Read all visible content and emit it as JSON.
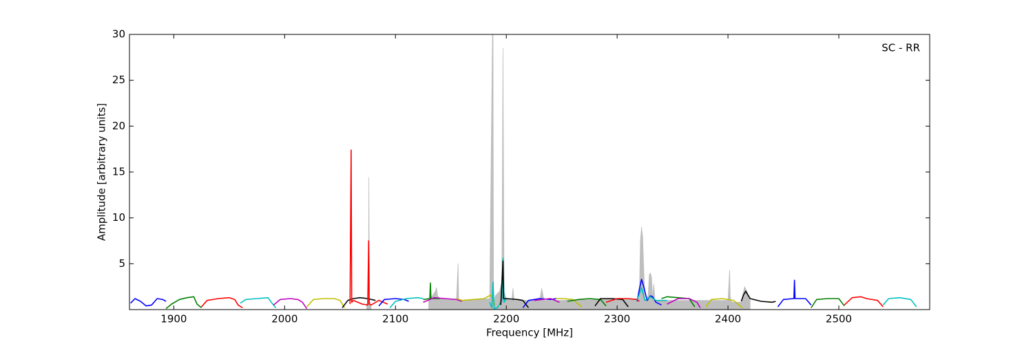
{
  "chart_data": {
    "type": "line",
    "xlabel": "Frequency [MHz]",
    "ylabel": "Amplitude [arbitrary units]",
    "annotation": "SC - RR",
    "xlim": [
      1860,
      2582
    ],
    "ylim": [
      0,
      30
    ],
    "xticks": [
      1900,
      2000,
      2100,
      2200,
      2300,
      2400,
      2500
    ],
    "yticks": [
      5,
      10,
      15,
      20,
      25,
      30
    ],
    "series": [
      {
        "color": "#bebebe",
        "fill": true,
        "x": [
          2074,
          2075.5,
          2076,
          2076.5,
          2078
        ],
        "values": [
          0.5,
          1.0,
          14.4,
          1.0,
          0.5
        ]
      },
      {
        "color": "#bebebe",
        "fill": true,
        "x": [
          2130,
          2136,
          2137,
          2138,
          2140,
          2155,
          2156.5,
          2157,
          2157.5,
          2160,
          2185,
          2187.5,
          2188,
          2188.5,
          2190,
          2194,
          2196,
          2197,
          2198,
          2200,
          2205,
          2206,
          2207,
          2230,
          2232,
          2234,
          2245,
          2320,
          2321,
          2322,
          2323,
          2325,
          2328,
          2329,
          2330,
          2331,
          2332,
          2333,
          2334,
          2335,
          2340,
          2400,
          2401.5,
          2402,
          2402.5,
          2404,
          2412,
          2415,
          2417,
          2420
        ],
        "values": [
          0.9,
          2.0,
          2.4,
          1.5,
          1.2,
          1.0,
          5.0,
          1.2,
          1.0,
          1.0,
          1.2,
          30,
          30,
          0.5,
          1.5,
          2.0,
          3.0,
          28.5,
          2.0,
          1.2,
          1.0,
          2.3,
          1.0,
          1.0,
          2.3,
          1.0,
          1.0,
          1.2,
          7.5,
          9.0,
          8.0,
          1.0,
          1.5,
          3.8,
          4.0,
          3.5,
          1.2,
          2.8,
          1.2,
          1.0,
          1.0,
          1.0,
          4.3,
          1.5,
          1.0,
          0.8,
          0.8,
          2.5,
          2.0,
          1.0
        ]
      },
      {
        "color": "#0000ff",
        "x": [
          1861,
          1865,
          1870,
          1875,
          1880,
          1885,
          1890,
          1893
        ],
        "values": [
          0.7,
          1.2,
          0.9,
          0.4,
          0.5,
          1.2,
          1.1,
          0.9
        ]
      },
      {
        "color": "#008000",
        "x": [
          1893,
          1898,
          1905,
          1912,
          1918,
          1921,
          1925
        ],
        "values": [
          0.1,
          0.6,
          1.1,
          1.3,
          1.4,
          0.6,
          0.2
        ]
      },
      {
        "color": "#ff0000",
        "x": [
          1925,
          1930,
          1940,
          1950,
          1955,
          1958,
          1962
        ],
        "values": [
          0.3,
          1.0,
          1.2,
          1.3,
          1.1,
          0.5,
          0.2
        ]
      },
      {
        "color": "#00bfbf",
        "x": [
          1960,
          1965,
          1975,
          1985,
          1988,
          1992
        ],
        "values": [
          0.7,
          1.1,
          1.2,
          1.3,
          0.8,
          0.2
        ]
      },
      {
        "color": "#bf00bf",
        "x": [
          1990,
          1996,
          2005,
          2012,
          2016,
          2020
        ],
        "values": [
          0.5,
          1.1,
          1.2,
          1.1,
          0.8,
          0.1
        ]
      },
      {
        "color": "#bfbf00",
        "x": [
          2020,
          2026,
          2035,
          2045,
          2050,
          2054
        ],
        "values": [
          0.3,
          1.1,
          1.2,
          1.2,
          1.0,
          0.2
        ]
      },
      {
        "color": "#000000",
        "x": [
          2052,
          2057,
          2062,
          2068,
          2075,
          2082
        ],
        "values": [
          0.2,
          1.0,
          1.2,
          1.3,
          1.2,
          1.0
        ]
      },
      {
        "color": "#ff0000",
        "x": [
          2059,
          2060,
          2060.5,
          2062,
          2070,
          2075,
          2075.8,
          2076.3,
          2078,
          2085,
          2093
        ],
        "values": [
          0.6,
          17.4,
          0.8,
          1.0,
          0.6,
          0.5,
          7.5,
          0.6,
          0.5,
          1.0,
          0.6
        ]
      },
      {
        "color": "#0000ff",
        "x": [
          2085,
          2090,
          2100,
          2108,
          2112
        ],
        "values": [
          0.4,
          1.1,
          1.2,
          1.1,
          0.9
        ]
      },
      {
        "color": "#00bfbf",
        "x": [
          2095,
          2100,
          2110,
          2120,
          2125
        ],
        "values": [
          0.2,
          0.9,
          1.2,
          1.3,
          1.2
        ]
      },
      {
        "color": "#008000",
        "x": [
          2125,
          2131,
          2131.5,
          2132,
          2140
        ],
        "values": [
          1.1,
          1.2,
          2.9,
          1.2,
          1.2
        ]
      },
      {
        "color": "#bf00bf",
        "x": [
          2125,
          2135,
          2145,
          2155,
          2160
        ],
        "values": [
          0.8,
          1.3,
          1.2,
          1.1,
          0.9
        ]
      },
      {
        "color": "#bfbf00",
        "x": [
          2155,
          2160,
          2170,
          2180,
          2186,
          2190
        ],
        "values": [
          1.2,
          1.0,
          1.1,
          1.2,
          1.6,
          0.5
        ]
      },
      {
        "color": "#00bfbf",
        "x": [
          2185,
          2187,
          2188,
          2189,
          2192,
          2196,
          2197,
          2198,
          2200
        ],
        "values": [
          0.8,
          0.2,
          3.0,
          0.1,
          0.2,
          1.0,
          5.6,
          0.8,
          1.2
        ]
      },
      {
        "color": "#000000",
        "x": [
          2195,
          2197,
          2197.5,
          2200,
          2210,
          2215,
          2220
        ],
        "values": [
          0.5,
          5.3,
          1.2,
          1.2,
          1.1,
          1.0,
          0.2
        ]
      },
      {
        "color": "#0000ff",
        "x": [
          2215,
          2220,
          2230,
          2240,
          2245
        ],
        "values": [
          0.2,
          1.0,
          1.2,
          1.1,
          1.2
        ]
      },
      {
        "color": "#bf00bf",
        "x": [
          2225,
          2232,
          2240,
          2248
        ],
        "values": [
          1.0,
          1.1,
          1.2,
          0.8
        ]
      },
      {
        "color": "#bfbf00",
        "x": [
          2245,
          2252,
          2260,
          2268
        ],
        "values": [
          1.2,
          1.2,
          1.1,
          0.3
        ]
      },
      {
        "color": "#008000",
        "x": [
          2255,
          2265,
          2275,
          2285,
          2290
        ],
        "values": [
          0.9,
          1.1,
          1.2,
          1.1,
          0.4
        ]
      },
      {
        "color": "#000000",
        "x": [
          2280,
          2285,
          2295,
          2305,
          2310
        ],
        "values": [
          0.4,
          1.2,
          1.2,
          1.1,
          0.3
        ]
      },
      {
        "color": "#ff0000",
        "x": [
          2290,
          2300,
          2310,
          2318,
          2320
        ],
        "values": [
          0.8,
          1.2,
          1.2,
          1.1,
          0.9
        ]
      },
      {
        "color": "#0000ff",
        "x": [
          2318,
          2320,
          2322,
          2324,
          2327,
          2330,
          2332,
          2335,
          2340
        ],
        "values": [
          0.9,
          2.2,
          3.3,
          2.5,
          1.0,
          1.5,
          1.4,
          0.8,
          0.5
        ]
      },
      {
        "color": "#00bfbf",
        "x": [
          2318,
          2322,
          2325,
          2330,
          2335,
          2345
        ],
        "values": [
          1.0,
          2.4,
          1.0,
          1.4,
          1.0,
          1.0
        ]
      },
      {
        "color": "#008000",
        "x": [
          2340,
          2345,
          2355,
          2365,
          2370
        ],
        "values": [
          1.2,
          1.4,
          1.3,
          1.2,
          0.3
        ]
      },
      {
        "color": "#bf00bf",
        "x": [
          2345,
          2355,
          2365,
          2372,
          2375
        ],
        "values": [
          0.6,
          1.2,
          1.2,
          0.8,
          0.2
        ]
      },
      {
        "color": "#bfbf00",
        "x": [
          2380,
          2385,
          2395,
          2405,
          2410,
          2413
        ],
        "values": [
          0.3,
          1.1,
          1.2,
          1.0,
          0.5,
          0.2
        ]
      },
      {
        "color": "#000000",
        "x": [
          2412,
          2414,
          2416,
          2420,
          2430,
          2440,
          2443
        ],
        "values": [
          0.9,
          1.6,
          2.0,
          1.2,
          0.9,
          0.8,
          0.9
        ]
      },
      {
        "color": "#0000ff",
        "x": [
          2445,
          2450,
          2459.5,
          2460,
          2460.5,
          2470,
          2475
        ],
        "values": [
          0.3,
          1.1,
          1.2,
          3.2,
          1.2,
          1.2,
          0.5
        ]
      },
      {
        "color": "#008000",
        "x": [
          2475,
          2480,
          2490,
          2500,
          2505
        ],
        "values": [
          0.2,
          1.1,
          1.2,
          1.2,
          0.4
        ]
      },
      {
        "color": "#ff0000",
        "x": [
          2505,
          2512,
          2520,
          2525,
          2535,
          2540
        ],
        "values": [
          0.5,
          1.3,
          1.4,
          1.2,
          1.0,
          0.3
        ]
      },
      {
        "color": "#00bfbf",
        "x": [
          2540,
          2545,
          2555,
          2565,
          2570
        ],
        "values": [
          0.5,
          1.2,
          1.3,
          1.1,
          0.3
        ]
      }
    ]
  }
}
